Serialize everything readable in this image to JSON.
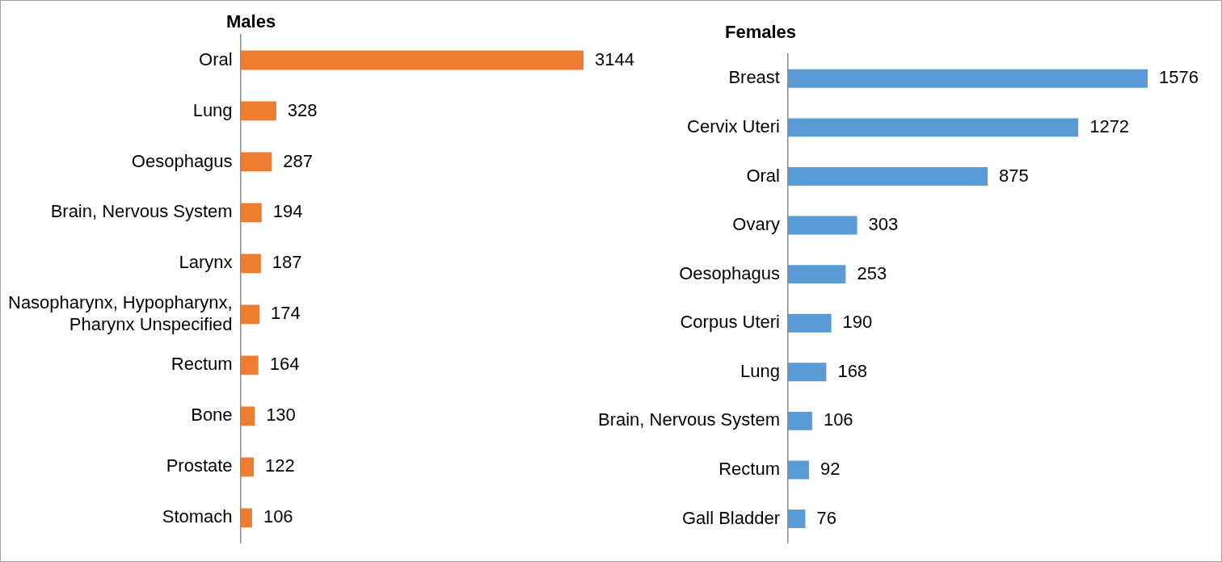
{
  "chart_data": [
    {
      "type": "bar",
      "title": "Males",
      "orientation": "horizontal",
      "data_labels": true,
      "tick_labels": "y",
      "grid": false,
      "color": "#ed7d31",
      "categories": [
        "Oral",
        "Lung",
        "Oesophagus",
        "Brain, Nervous System",
        "Larynx",
        [
          "Nasopharynx, Hypopharynx,",
          "Pharynx Unspecified"
        ],
        "Rectum",
        "Bone",
        "Prostate",
        "Stomach"
      ],
      "values": [
        3144,
        328,
        287,
        194,
        187,
        174,
        164,
        130,
        122,
        106
      ]
    },
    {
      "type": "bar",
      "title": "Females",
      "orientation": "horizontal",
      "data_labels": true,
      "tick_labels": "y",
      "grid": false,
      "color": "#5b9bd5",
      "categories": [
        "Breast",
        "Cervix Uteri",
        "Oral",
        "Ovary",
        "Oesophagus",
        "Corpus Uteri",
        "Lung",
        "Brain, Nervous System",
        "Rectum",
        "Gall Bladder"
      ],
      "values": [
        1576,
        1272,
        875,
        303,
        253,
        190,
        168,
        106,
        92,
        76
      ]
    }
  ]
}
